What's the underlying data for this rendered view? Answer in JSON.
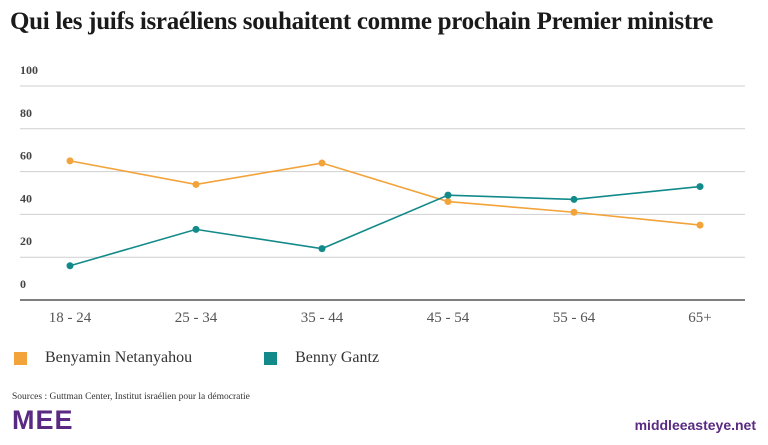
{
  "title": "Qui les juifs israéliens souhaitent comme prochain Premier ministre",
  "source": "Sources : Guttman Center, Institut israélien pour la démocratie",
  "logo": "MEE",
  "site": "middleeasteye.net",
  "colors": {
    "netanyahou": "#f2a33a",
    "gantz": "#138a8a",
    "grid": "#cfcfcf",
    "text": "#555555",
    "brand": "#5a2a82"
  },
  "chart_data": {
    "type": "line",
    "title": "Qui les juifs israéliens souhaitent comme prochain Premier ministre",
    "categories": [
      "18 - 24",
      "25 - 34",
      "35 - 44",
      "45 - 54",
      "55 - 64",
      "65+"
    ],
    "yticks": [
      "100",
      "80",
      "60",
      "40",
      "20",
      "0"
    ],
    "ylim": [
      0,
      100
    ],
    "xlabel": "",
    "ylabel": "",
    "grid": true,
    "legend_position": "bottom-left",
    "series": [
      {
        "name": "Benyamin Netanyahou",
        "color": "#f2a33a",
        "values": [
          65,
          54,
          64,
          46,
          41,
          35
        ]
      },
      {
        "name": "Benny Gantz",
        "color": "#138a8a",
        "values": [
          16,
          33,
          24,
          49,
          47,
          53
        ]
      }
    ]
  }
}
